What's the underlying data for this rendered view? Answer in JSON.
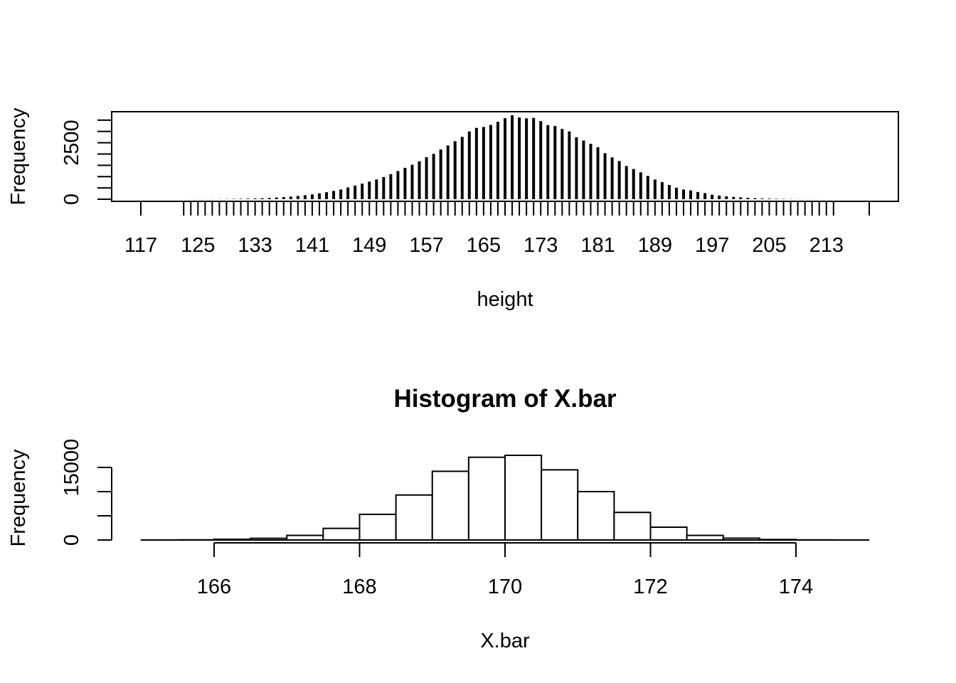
{
  "chart_data": [
    {
      "type": "bar",
      "plot_style": "frequency-table (spikes)",
      "title": "",
      "xlabel": "height",
      "ylabel": "Frequency",
      "x_tick_labels": [
        "117",
        "125",
        "133",
        "141",
        "149",
        "157",
        "165",
        "173",
        "181",
        "189",
        "197",
        "205",
        "213"
      ],
      "y_tick_labels": [
        "0",
        "2500"
      ],
      "y_minor_ticks": [
        0,
        500,
        1000,
        1500,
        2000,
        2500,
        3000,
        3500
      ],
      "ylim": [
        0,
        3750
      ],
      "box": true,
      "grid": false,
      "x": [
        117,
        123,
        124,
        125,
        126,
        127,
        128,
        129,
        130,
        131,
        132,
        133,
        134,
        135,
        136,
        137,
        138,
        139,
        140,
        141,
        142,
        143,
        144,
        145,
        146,
        147,
        148,
        149,
        150,
        151,
        152,
        153,
        154,
        155,
        156,
        157,
        158,
        159,
        160,
        161,
        162,
        163,
        164,
        165,
        166,
        167,
        168,
        169,
        170,
        171,
        172,
        173,
        174,
        175,
        176,
        177,
        178,
        179,
        180,
        181,
        182,
        183,
        184,
        185,
        186,
        187,
        188,
        189,
        190,
        191,
        192,
        193,
        194,
        195,
        196,
        197,
        198,
        199,
        200,
        201,
        202,
        203,
        204,
        205,
        206,
        207,
        208,
        209,
        210,
        211,
        212,
        213,
        214,
        219
      ],
      "values": [
        2,
        1,
        2,
        3,
        4,
        5,
        7,
        10,
        14,
        19,
        25,
        33,
        44,
        57,
        73,
        93,
        117,
        145,
        178,
        216,
        260,
        310,
        366,
        428,
        520,
        602,
        690,
        780,
        875,
        980,
        1110,
        1250,
        1390,
        1530,
        1680,
        1860,
        2010,
        2200,
        2380,
        2570,
        2760,
        3000,
        3160,
        3200,
        3290,
        3430,
        3590,
        3720,
        3620,
        3580,
        3600,
        3460,
        3280,
        3240,
        3110,
        3000,
        2740,
        2600,
        2450,
        2300,
        2040,
        1850,
        1690,
        1470,
        1340,
        1190,
        1030,
        870,
        760,
        630,
        510,
        430,
        390,
        320,
        270,
        200,
        160,
        130,
        100,
        80,
        60,
        45,
        33,
        24,
        17,
        12,
        9,
        6,
        4,
        3,
        2,
        2,
        1,
        1
      ]
    },
    {
      "type": "bar",
      "plot_style": "histogram",
      "title": "Histogram of X.bar",
      "xlabel": "X.bar",
      "ylabel": "Frequency",
      "x_tick_labels": [
        "166",
        "168",
        "170",
        "172",
        "174"
      ],
      "y_tick_labels": [
        "0",
        "15000"
      ],
      "y_minor_ticks": [
        0,
        5000,
        10000,
        15000
      ],
      "xlim": [
        166,
        174
      ],
      "ylim": [
        0,
        15000
      ],
      "box": false,
      "grid": false,
      "bin_width": 0.5,
      "bin_edges": [
        165,
        165.5,
        166,
        166.5,
        167,
        167.5,
        168,
        168.5,
        169,
        169.5,
        170,
        170.5,
        171,
        171.5,
        172,
        172.5,
        173,
        173.5,
        174,
        174.5,
        175
      ],
      "values": [
        5,
        30,
        150,
        350,
        950,
        2400,
        5300,
        9300,
        14200,
        17100,
        17500,
        14500,
        10000,
        5700,
        2650,
        950,
        380,
        100,
        25,
        5
      ]
    }
  ]
}
